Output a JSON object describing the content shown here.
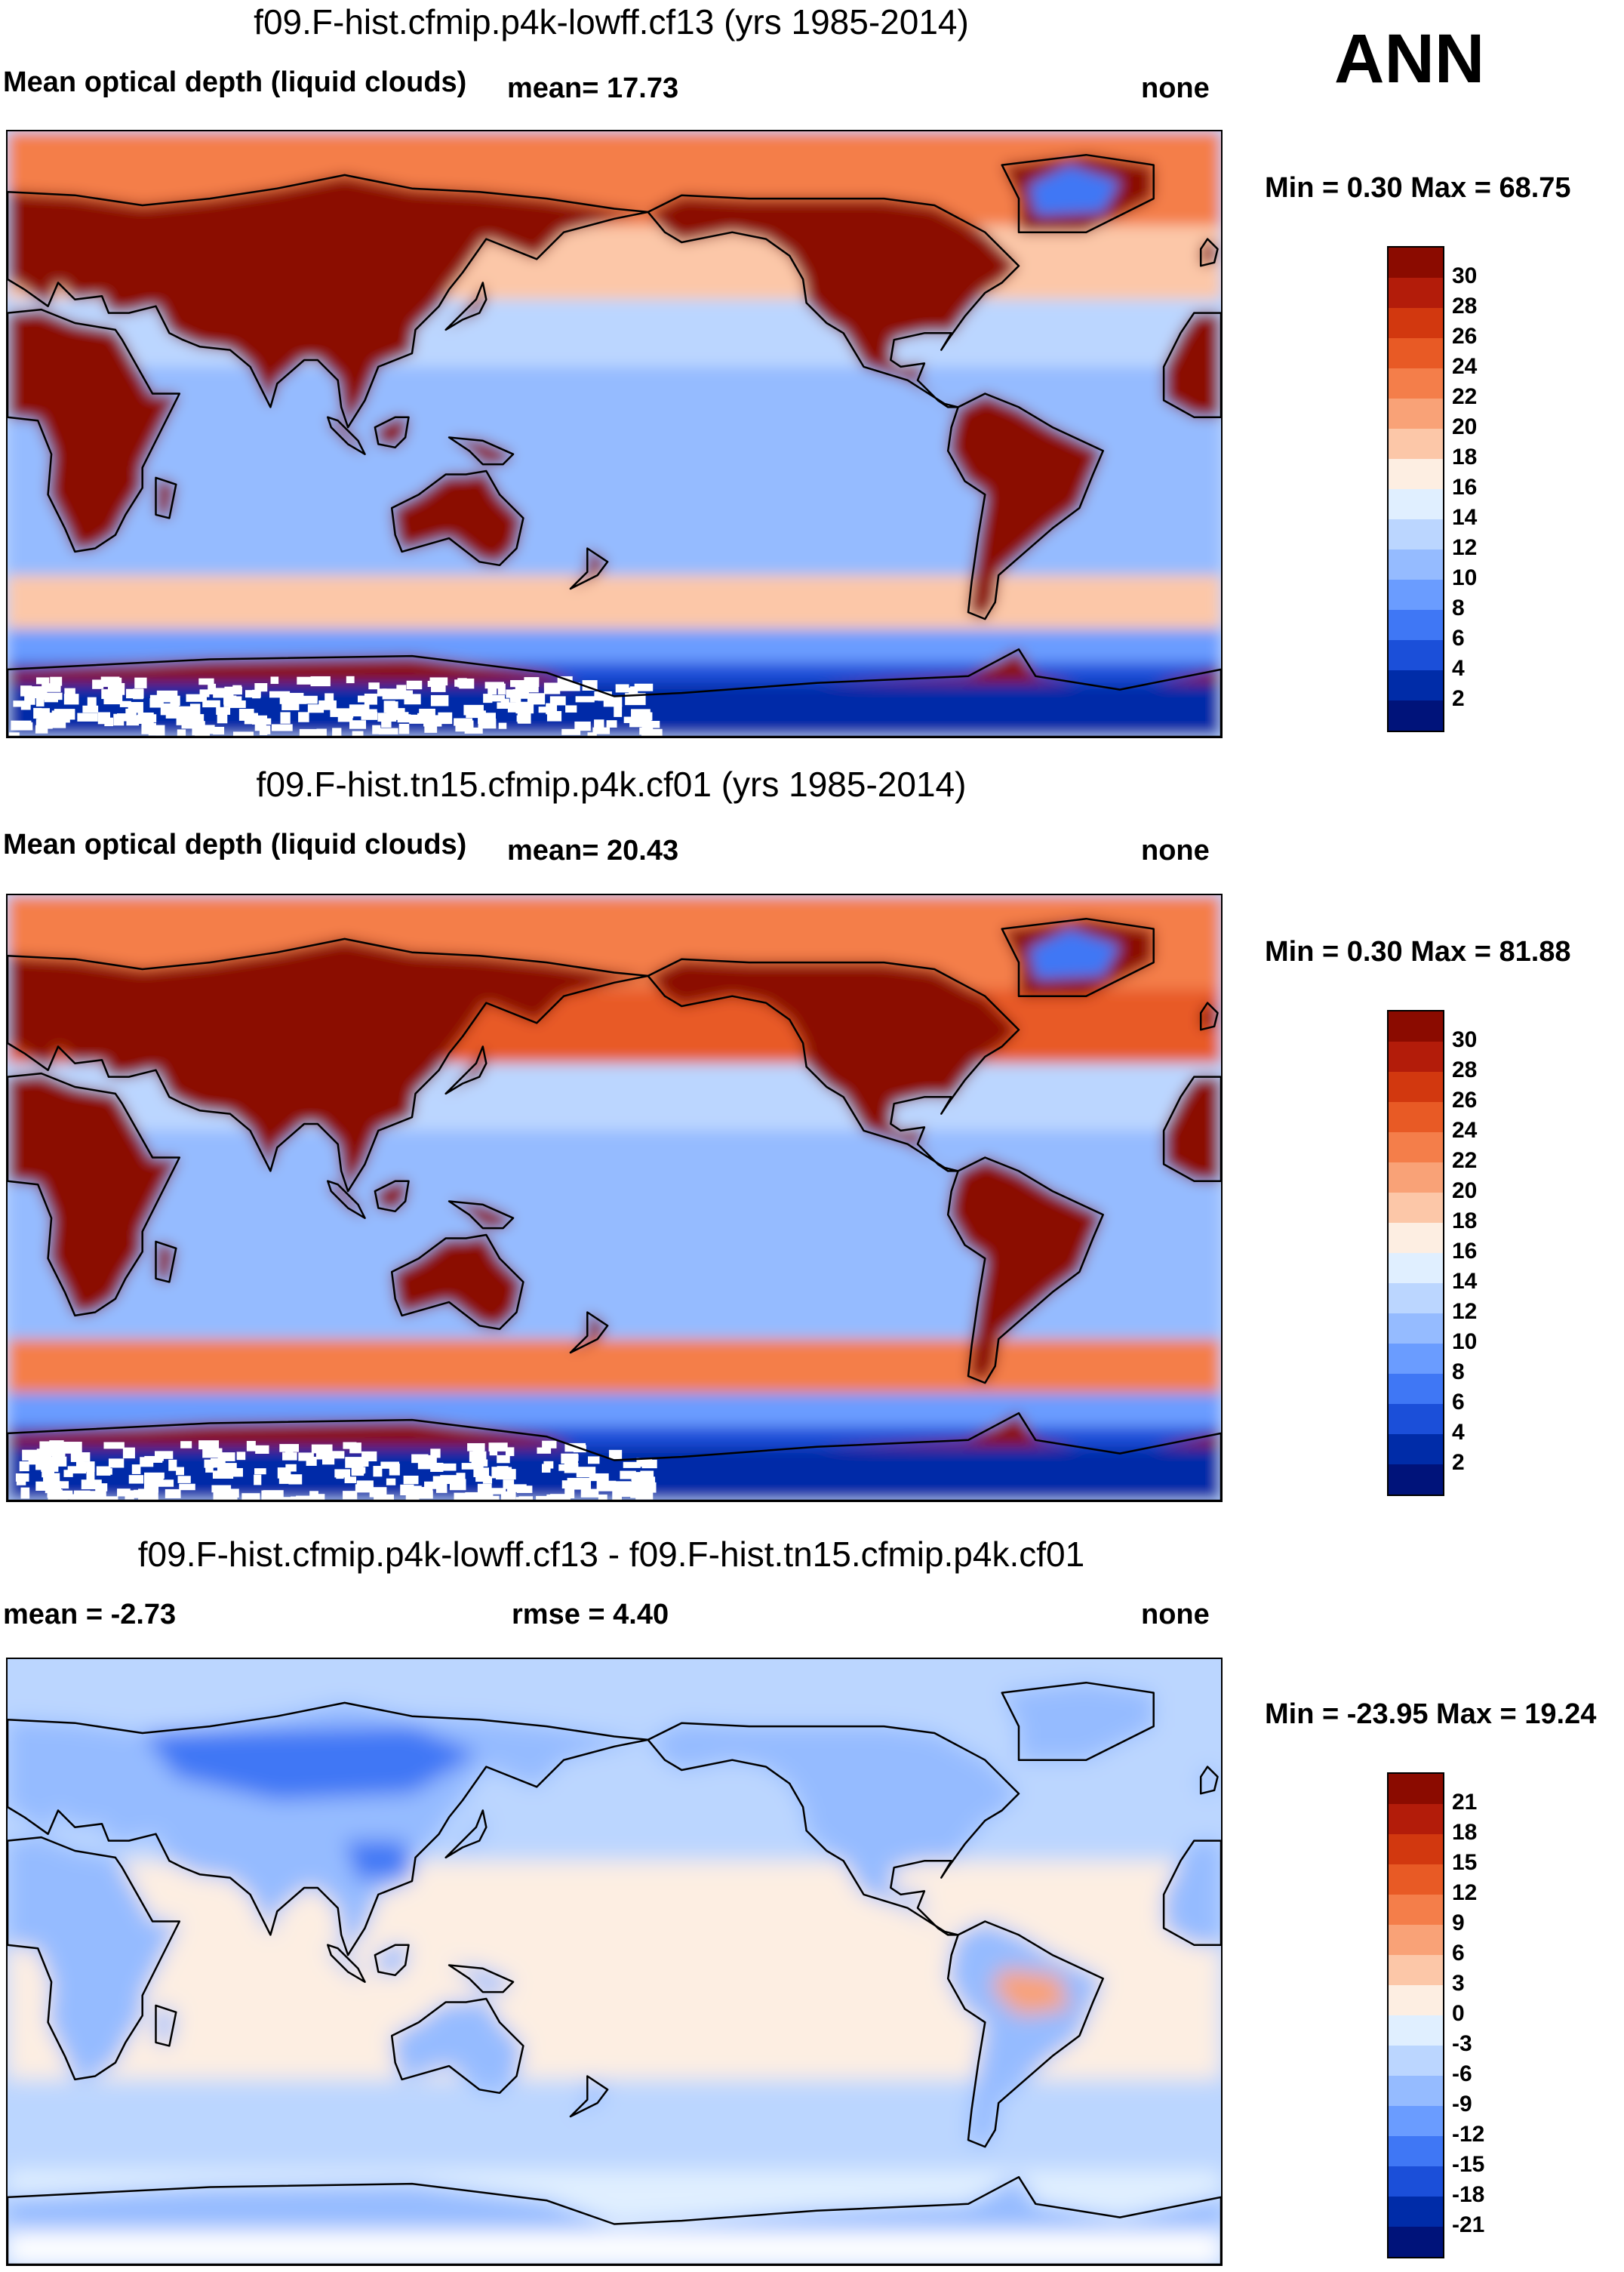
{
  "season": "ANN",
  "panels": [
    {
      "title": "f09.F-hist.cfmip.p4k-lowff.cf13 (yrs 1985-2014)",
      "left_label": "Mean optical depth (liquid clouds)",
      "center_label": "mean=  17.73",
      "right_label": "none",
      "minmax": "Min =   0.30 Max =  68.75",
      "colorbar_levels": [
        "30",
        "28",
        "26",
        "24",
        "22",
        "20",
        "18",
        "16",
        "14",
        "12",
        "10",
        "8",
        "6",
        "4",
        "2"
      ],
      "colorbar_colors": [
        "#8b0b00",
        "#b31c0a",
        "#d2380f",
        "#e85a25",
        "#f47e4a",
        "#f9a277",
        "#fcc7a8",
        "#fdeee2",
        "#e0efff",
        "#bbd6ff",
        "#95bbff",
        "#6a9cff",
        "#3f77f5",
        "#1b4fd9",
        "#002ca8",
        "#00137a"
      ],
      "map_kind": "absolute",
      "chart_data": {
        "type": "heatmap",
        "title": "f09.F-hist.cfmip.p4k-lowff.cf13 (yrs 1985-2014)",
        "variable": "Mean optical depth (liquid clouds)",
        "mean": 17.73,
        "min": 0.3,
        "max": 68.75,
        "levels": [
          2,
          4,
          6,
          8,
          10,
          12,
          14,
          16,
          18,
          20,
          22,
          24,
          26,
          28,
          30
        ]
      }
    },
    {
      "title": "f09.F-hist.tn15.cfmip.p4k.cf01 (yrs 1985-2014)",
      "left_label": "Mean optical depth (liquid clouds)",
      "center_label": "mean=  20.43",
      "right_label": "none",
      "minmax": "Min =   0.30 Max =  81.88",
      "colorbar_levels": [
        "30",
        "28",
        "26",
        "24",
        "22",
        "20",
        "18",
        "16",
        "14",
        "12",
        "10",
        "8",
        "6",
        "4",
        "2"
      ],
      "colorbar_colors": [
        "#8b0b00",
        "#b31c0a",
        "#d2380f",
        "#e85a25",
        "#f47e4a",
        "#f9a277",
        "#fcc7a8",
        "#fdeee2",
        "#e0efff",
        "#bbd6ff",
        "#95bbff",
        "#6a9cff",
        "#3f77f5",
        "#1b4fd9",
        "#002ca8",
        "#00137a"
      ],
      "map_kind": "absolute",
      "chart_data": {
        "type": "heatmap",
        "title": "f09.F-hist.tn15.cfmip.p4k.cf01 (yrs 1985-2014)",
        "variable": "Mean optical depth (liquid clouds)",
        "mean": 20.43,
        "min": 0.3,
        "max": 81.88,
        "levels": [
          2,
          4,
          6,
          8,
          10,
          12,
          14,
          16,
          18,
          20,
          22,
          24,
          26,
          28,
          30
        ]
      }
    },
    {
      "title": "f09.F-hist.cfmip.p4k-lowff.cf13 - f09.F-hist.tn15.cfmip.p4k.cf01",
      "left_label": "mean =  -2.73",
      "center_label": "rmse =   4.40",
      "right_label": "none",
      "minmax": "Min = -23.95 Max =  19.24",
      "colorbar_levels": [
        "21",
        "18",
        "15",
        "12",
        "9",
        "6",
        "3",
        "0",
        "-3",
        "-6",
        "-9",
        "-12",
        "-15",
        "-18",
        "-21"
      ],
      "colorbar_colors": [
        "#8b0b00",
        "#b31c0a",
        "#d2380f",
        "#e85a25",
        "#f47e4a",
        "#f9a277",
        "#fcc7a8",
        "#fdeee2",
        "#e0efff",
        "#bbd6ff",
        "#95bbff",
        "#6a9cff",
        "#3f77f5",
        "#1b4fd9",
        "#002ca8",
        "#00137a"
      ],
      "map_kind": "difference",
      "chart_data": {
        "type": "heatmap",
        "title": "f09.F-hist.cfmip.p4k-lowff.cf13 - f09.F-hist.tn15.cfmip.p4k.cf01",
        "mean": -2.73,
        "rmse": 4.4,
        "min": -23.95,
        "max": 19.24,
        "levels": [
          -21,
          -18,
          -15,
          -12,
          -9,
          -6,
          -3,
          0,
          3,
          6,
          9,
          12,
          15,
          18,
          21
        ]
      }
    }
  ]
}
